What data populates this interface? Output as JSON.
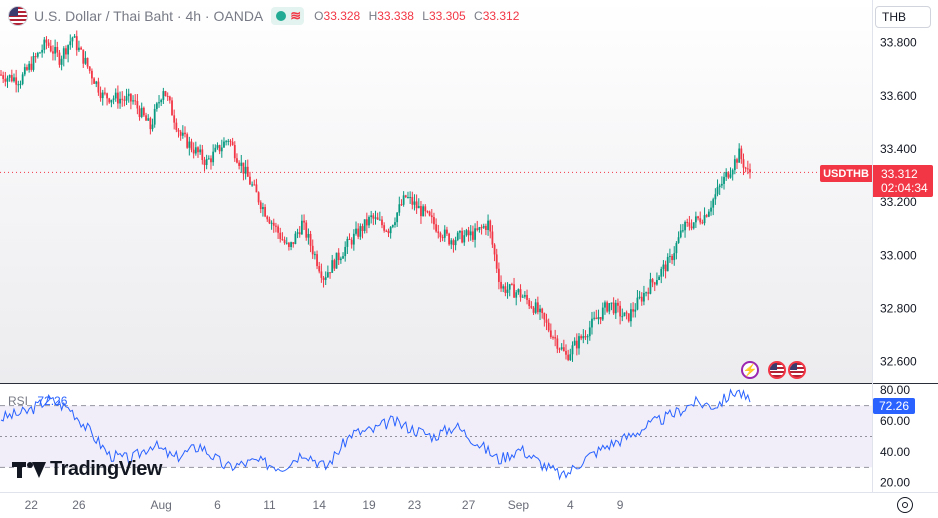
{
  "legend": {
    "symbol_icon": "us-flag-icon",
    "title": "U.S. Dollar / Thai Baht · 4h · OANDA",
    "market_icon": "market-open-dot-icon",
    "wave_icon": "≋",
    "open_label": "O",
    "open_value": "33.328",
    "high_label": "H",
    "high_value": "33.338",
    "low_label": "L",
    "low_value": "33.305",
    "close_label": "C",
    "close_value": "33.312"
  },
  "currency_button": "THB",
  "price_axis": {
    "ticks": [
      "33.800",
      "33.600",
      "33.400",
      "33.200",
      "33.000",
      "32.800",
      "32.600"
    ],
    "tick_values": [
      33.8,
      33.6,
      33.4,
      33.2,
      33.0,
      32.8,
      32.6
    ]
  },
  "price_tag": {
    "symbol": "USDTHB",
    "price": "33.312",
    "countdown": "02:04:34"
  },
  "rsi": {
    "name": "RSI",
    "value": "72.26",
    "axis_ticks": [
      "80.00",
      "60.00",
      "40.00",
      "20.00"
    ],
    "tick_values": [
      80,
      60,
      40,
      20
    ],
    "band_upper": 70,
    "band_middle": 50,
    "band_lower": 30
  },
  "time_axis": {
    "labels": [
      "22",
      "26",
      "Aug",
      "6",
      "11",
      "14",
      "19",
      "23",
      "27",
      "Sep",
      "4",
      "9"
    ]
  },
  "logo": {
    "word": "TradingView"
  },
  "events": {
    "lightning_icon": "⚡",
    "flag_icon": "us-flag-icon"
  },
  "colors": {
    "up": "#089981",
    "down": "#f23645",
    "rsi_line": "#2962ff",
    "rsi_band": "#7e57c2"
  },
  "chart_data": {
    "type": "candlestick",
    "symbol": "USDTHB",
    "timeframe": "4h",
    "ylim": [
      32.52,
      33.96
    ],
    "rsi_ylim": [
      14,
      84
    ],
    "last_price": 33.312,
    "control_points": [
      [
        0,
        33.68
      ],
      [
        10,
        33.66
      ],
      [
        22,
        33.8
      ],
      [
        28,
        33.74
      ],
      [
        34,
        33.82
      ],
      [
        48,
        33.6
      ],
      [
        62,
        33.58
      ],
      [
        70,
        33.48
      ],
      [
        76,
        33.63
      ],
      [
        84,
        33.45
      ],
      [
        96,
        33.35
      ],
      [
        106,
        33.44
      ],
      [
        112,
        33.34
      ],
      [
        122,
        33.18
      ],
      [
        134,
        33.02
      ],
      [
        140,
        33.12
      ],
      [
        150,
        32.92
      ],
      [
        162,
        33.05
      ],
      [
        172,
        33.14
      ],
      [
        180,
        33.1
      ],
      [
        188,
        33.22
      ],
      [
        196,
        33.16
      ],
      [
        208,
        33.06
      ],
      [
        220,
        33.08
      ],
      [
        226,
        33.12
      ],
      [
        232,
        32.88
      ],
      [
        240,
        32.86
      ],
      [
        248,
        32.8
      ],
      [
        256,
        32.7
      ],
      [
        262,
        32.62
      ],
      [
        272,
        32.72
      ],
      [
        282,
        32.82
      ],
      [
        290,
        32.76
      ],
      [
        300,
        32.88
      ],
      [
        310,
        32.98
      ],
      [
        316,
        33.1
      ],
      [
        326,
        33.15
      ],
      [
        336,
        33.3
      ],
      [
        342,
        33.38
      ],
      [
        346,
        33.31
      ]
    ],
    "rsi_control_points": [
      [
        0,
        62
      ],
      [
        12,
        66
      ],
      [
        22,
        74
      ],
      [
        32,
        68
      ],
      [
        40,
        55
      ],
      [
        50,
        38
      ],
      [
        60,
        35
      ],
      [
        70,
        45
      ],
      [
        80,
        36
      ],
      [
        92,
        44
      ],
      [
        104,
        30
      ],
      [
        118,
        34
      ],
      [
        130,
        30
      ],
      [
        140,
        40
      ],
      [
        150,
        30
      ],
      [
        162,
        52
      ],
      [
        172,
        54
      ],
      [
        180,
        60
      ],
      [
        190,
        55
      ],
      [
        200,
        50
      ],
      [
        210,
        57
      ],
      [
        220,
        46
      ],
      [
        230,
        35
      ],
      [
        240,
        42
      ],
      [
        250,
        32
      ],
      [
        260,
        24
      ],
      [
        270,
        36
      ],
      [
        280,
        44
      ],
      [
        290,
        50
      ],
      [
        300,
        58
      ],
      [
        310,
        64
      ],
      [
        320,
        72
      ],
      [
        330,
        70
      ],
      [
        340,
        80
      ],
      [
        346,
        72.26
      ]
    ]
  }
}
